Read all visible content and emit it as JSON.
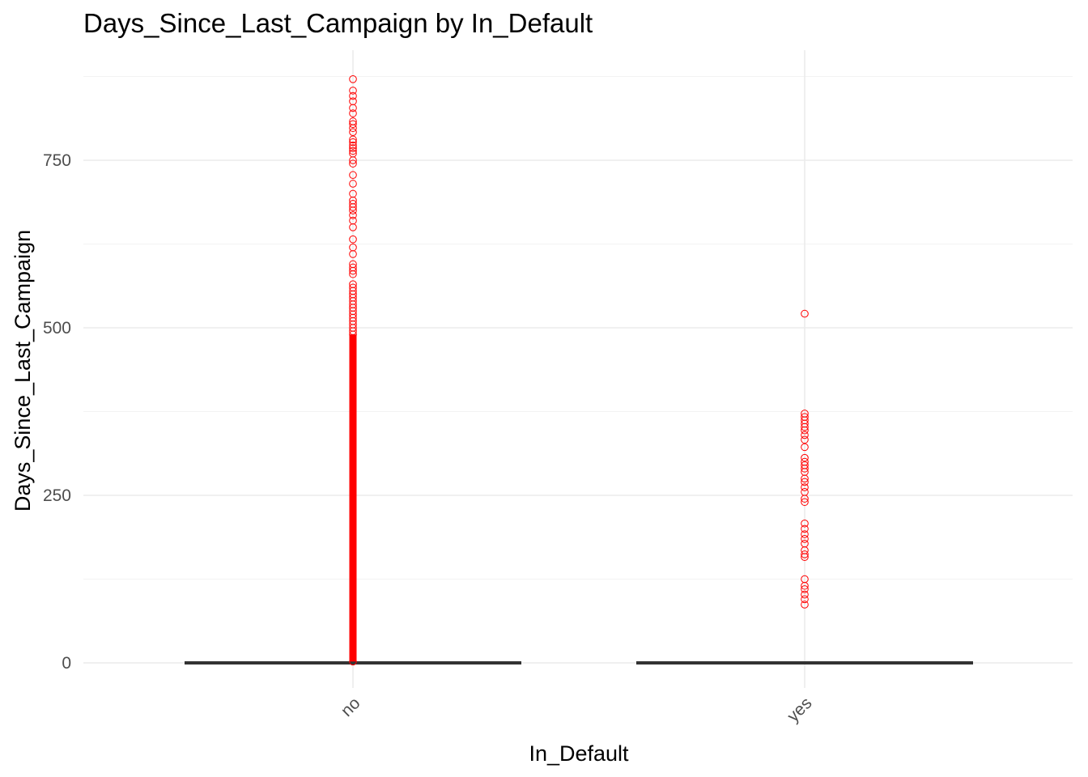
{
  "chart_data": {
    "type": "boxplot",
    "title": "Days_Since_Last_Campaign by In_Default",
    "xlabel": "In_Default",
    "ylabel": "Days_Since_Last_Campaign",
    "categories": [
      "no",
      "yes"
    ],
    "ylim": [
      -2,
      920
    ],
    "yticks": [
      0,
      250,
      500,
      750
    ],
    "grid": true,
    "outlier_color": "#ff0000",
    "box_color": "#333333",
    "boxes": [
      {
        "category": "no",
        "min": 0,
        "q1": 0,
        "median": 0,
        "q3": 0,
        "max": 0
      },
      {
        "category": "yes",
        "min": 0,
        "q1": 0,
        "median": 0,
        "q3": 0,
        "max": 0
      }
    ],
    "outliers": {
      "no": [
        2,
        871,
        854,
        846,
        838,
        828,
        820,
        808,
        804,
        798,
        792,
        781,
        777,
        772,
        768,
        764,
        760,
        750,
        745,
        728,
        715,
        700,
        690,
        685,
        680,
        675,
        668,
        660,
        650,
        632,
        620,
        610,
        595,
        590,
        585,
        580,
        565,
        560,
        555,
        550,
        545,
        540,
        535,
        530,
        525,
        520,
        515,
        510,
        505,
        500,
        495,
        490
      ],
      "yes": [
        521,
        372,
        367,
        362,
        357,
        352,
        347,
        340,
        333,
        322,
        306,
        300,
        295,
        290,
        285,
        275,
        270,
        262,
        255,
        245,
        240,
        208,
        200,
        192,
        185,
        178,
        168,
        162,
        158,
        125,
        115,
        110,
        102,
        95,
        87
      ]
    },
    "dense_range": {
      "no": [
        2,
        490
      ]
    }
  }
}
